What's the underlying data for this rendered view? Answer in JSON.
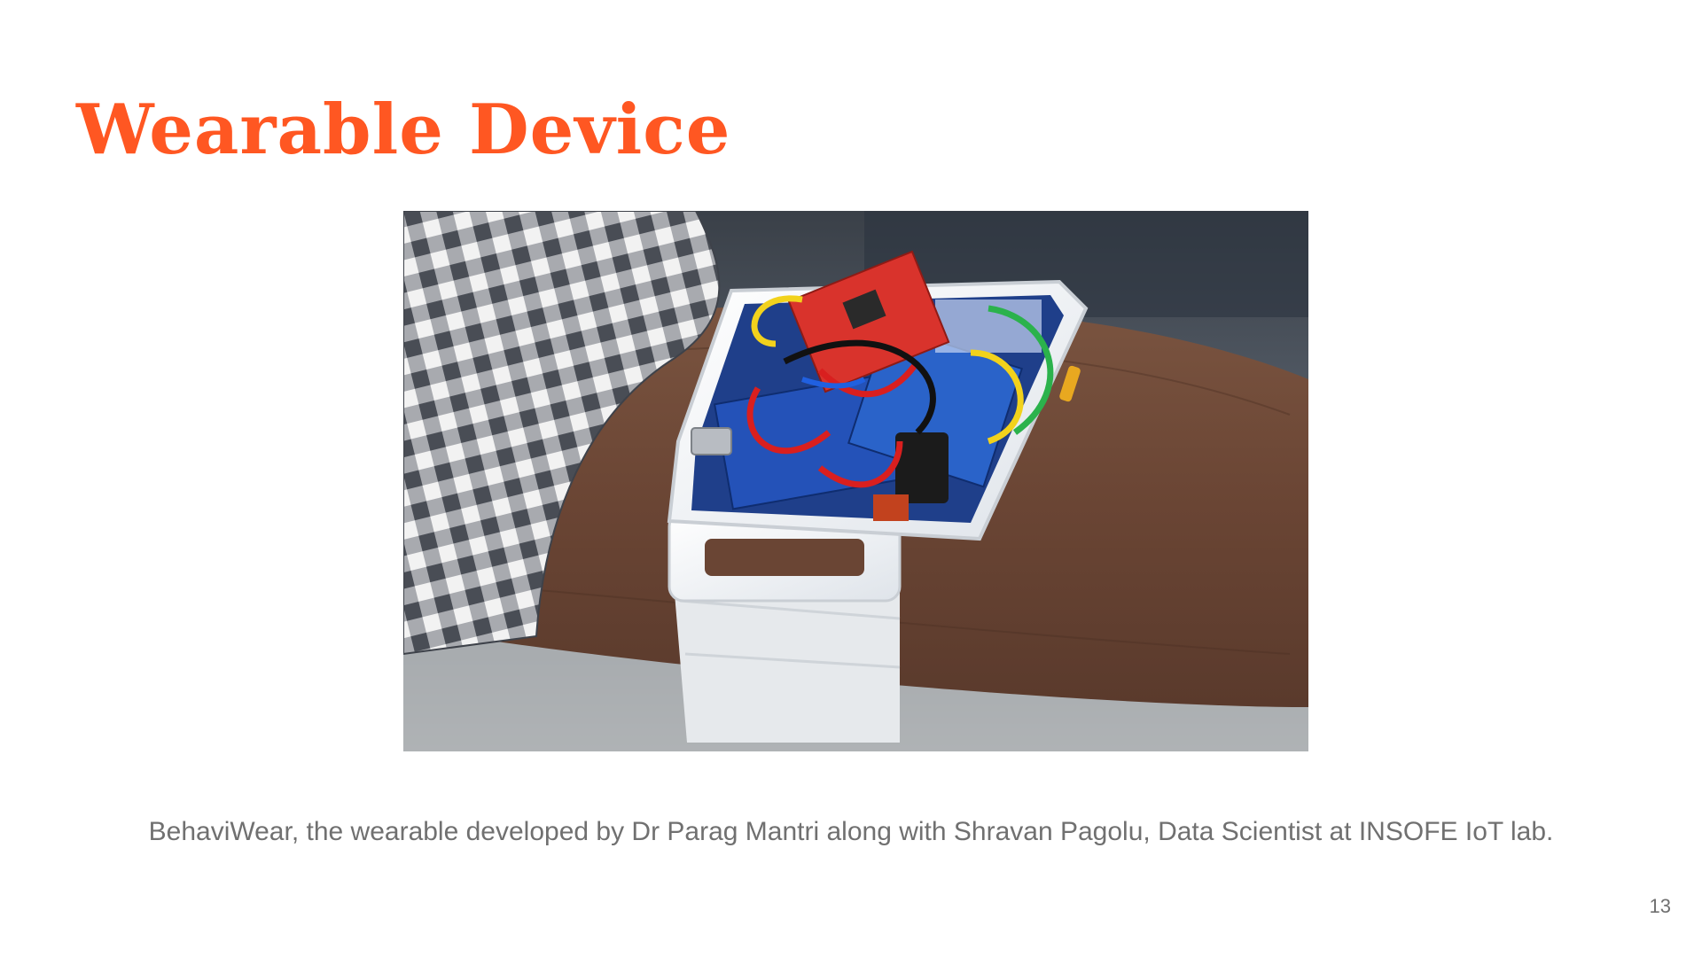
{
  "slide": {
    "title": "Wearable Device",
    "caption": "BehaviWear, the wearable developed by Dr Parag Mantri along with Shravan Pagolu, Data Scientist at INSOFE IoT lab.",
    "page_number": "13",
    "photo": {
      "subject": "wrist-worn-prototype-device"
    }
  },
  "colors": {
    "title": "#ff5722",
    "caption": "#707070",
    "page_number": "#707070"
  }
}
